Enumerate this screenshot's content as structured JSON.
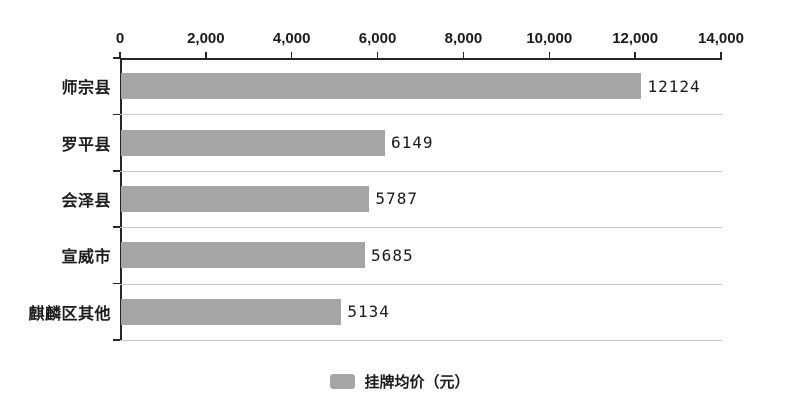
{
  "chart_data": {
    "type": "bar",
    "orientation": "horizontal",
    "title": "",
    "categories": [
      "师宗县",
      "罗平县",
      "会泽县",
      "宣威市",
      "麒麟区其他"
    ],
    "values": [
      12124,
      6149,
      5787,
      5685,
      5134
    ],
    "value_labels": [
      "12124",
      "6149",
      "5787",
      "5685",
      "5134"
    ],
    "series_name": "挂牌均价（元）",
    "xlim": [
      0,
      14000
    ],
    "x_ticks": [
      {
        "value": 0,
        "label": "0"
      },
      {
        "value": 2000,
        "label": "2,000"
      },
      {
        "value": 4000,
        "label": "4,000"
      },
      {
        "value": 6000,
        "label": "6,000"
      },
      {
        "value": 8000,
        "label": "8,000"
      },
      {
        "value": 10000,
        "label": "10,000"
      },
      {
        "value": 12000,
        "label": "12,000"
      },
      {
        "value": 14000,
        "label": "14,000"
      }
    ],
    "grid": "horizontal-row-separators-only",
    "legend": {
      "position": "bottom-center",
      "label": "挂牌均价（元）",
      "swatch_color": "#a5a5a5"
    },
    "colors": {
      "bar": "#a5a5a5",
      "axis": "#262626",
      "gridline": "#c9c9c9",
      "text": "#1a1a1a",
      "background": "#ffffff"
    }
  }
}
